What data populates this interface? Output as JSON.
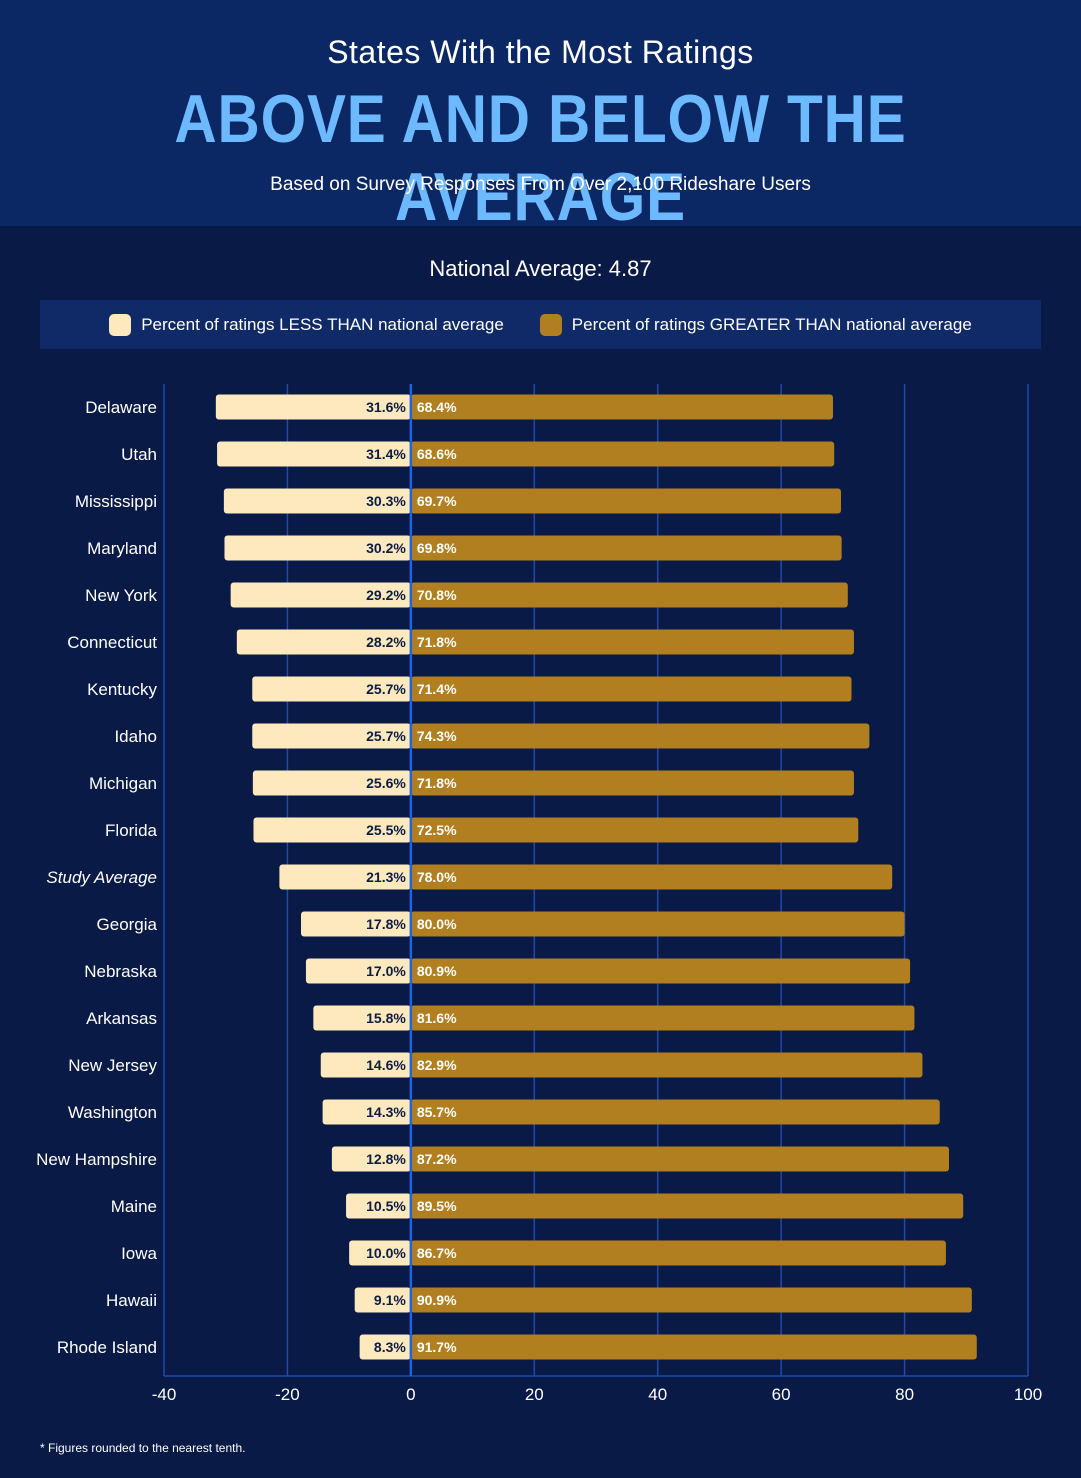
{
  "header": {
    "top_title": "States With the Most Ratings",
    "main_title": "ABOVE AND BELOW THE AVERAGE",
    "subtitle": "Based on Survey Responses From Over 2,100 Rideshare Users"
  },
  "national_average": "National Average: 4.87",
  "legend": {
    "less_label": "Percent of ratings LESS THAN national average",
    "greater_label": "Percent of ratings GREATER THAN national average"
  },
  "colors": {
    "less": "#fde9bd",
    "greater": "#b17f1f",
    "center_line": "#1e64e0",
    "grid": "#1e4aa8"
  },
  "footnote": "* Figures rounded to the nearest tenth.",
  "chart_data": {
    "type": "bar",
    "orientation": "horizontal-diverging",
    "categories": [
      "Delaware",
      "Utah",
      "Mississippi",
      "Maryland",
      "New York",
      "Connecticut",
      "Kentucky",
      "Idaho",
      "Michigan",
      "Florida",
      "Study Average",
      "Georgia",
      "Nebraska",
      "Arkansas",
      "New Jersey",
      "Washington",
      "New Hampshire",
      "Maine",
      "Iowa",
      "Hawaii",
      "Rhode Island"
    ],
    "series": [
      {
        "name": "Percent of ratings LESS THAN national average",
        "values": [
          31.6,
          31.4,
          30.3,
          30.2,
          29.2,
          28.2,
          25.7,
          25.7,
          25.6,
          25.5,
          21.3,
          17.8,
          17.0,
          15.8,
          14.6,
          14.3,
          12.8,
          10.5,
          10.0,
          9.1,
          8.3
        ],
        "labels": [
          "31.6%",
          "31.4%",
          "30.3%",
          "30.2%",
          "29.2%",
          "28.2%",
          "25.7%",
          "25.7%",
          "25.6%",
          "25.5%",
          "21.3%",
          "17.8%",
          "17.0%",
          "15.8%",
          "14.6%",
          "14.3%",
          "12.8%",
          "10.5%",
          "10.0%",
          "9.1%",
          "8.3%"
        ]
      },
      {
        "name": "Percent of ratings GREATER THAN national average",
        "values": [
          68.4,
          68.6,
          69.7,
          69.8,
          70.8,
          71.8,
          71.4,
          74.3,
          71.8,
          72.5,
          78.0,
          80.0,
          80.9,
          81.6,
          82.9,
          85.7,
          87.2,
          89.5,
          86.7,
          90.9,
          91.7
        ],
        "labels": [
          "68.4%",
          "68.6%",
          "69.7%",
          "69.8%",
          "70.8%",
          "71.8%",
          "71.4%",
          "74.3%",
          "71.8%",
          "72.5%",
          "78.0%",
          "80.0%",
          "80.9%",
          "81.6%",
          "82.9%",
          "85.7%",
          "87.2%",
          "89.5%",
          "86.7%",
          "90.9%",
          "91.7%"
        ]
      }
    ],
    "xlim": [
      -40,
      100
    ],
    "xticks": [
      "-40",
      "-20",
      "0",
      "20",
      "40",
      "60",
      "80",
      "100"
    ],
    "italic_category": "Study Average",
    "grid": true
  }
}
